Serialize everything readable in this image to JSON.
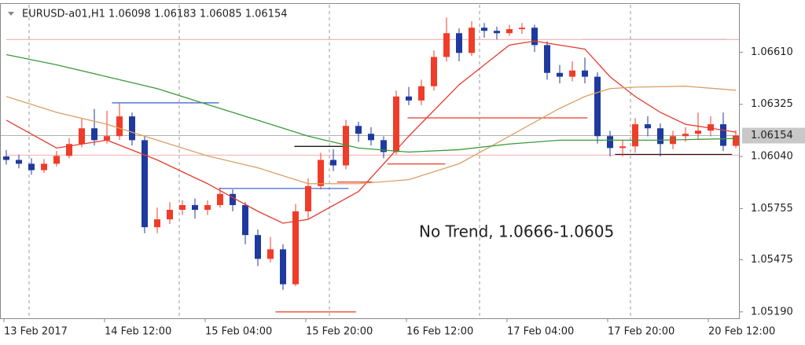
{
  "chart_data": {
    "type": "candlestick",
    "title": "EURUSD-a01,H1 1.06098 1.06183 1.06085 1.06154",
    "annotation": "No Trend, 1.0666-1.0605",
    "up_color": "#f03c28",
    "down_color": "#1f3a9e",
    "categories": [
      "13 Feb 2017",
      null,
      null,
      null,
      null,
      null,
      null,
      null,
      "14 Feb 12:00",
      null,
      null,
      null,
      null,
      null,
      null,
      null,
      "15 Feb 04:00",
      null,
      null,
      null,
      null,
      null,
      null,
      null,
      "15 Feb 20:00",
      null,
      null,
      null,
      null,
      null,
      null,
      null,
      "16 Feb 12:00",
      null,
      null,
      null,
      null,
      null,
      null,
      null,
      "17 Feb 04:00",
      null,
      null,
      null,
      null,
      null,
      null,
      null,
      "17 Feb 20:00",
      null,
      null,
      null,
      null,
      null,
      null,
      null,
      "20 Feb 12:00",
      null,
      null
    ],
    "open": [
      1.0604,
      1.06021,
      1.06,
      1.05965,
      1.06,
      1.06043,
      1.06108,
      1.06194,
      1.06129,
      1.06151,
      1.06259,
      1.06129,
      1.05653,
      1.05696,
      1.05748,
      1.05774,
      1.05748,
      1.05774,
      1.05835,
      1.05774,
      1.0561,
      1.0548,
      1.05532,
      1.05341,
      1.0574,
      1.05878,
      1.06021,
      1.05991,
      1.06207,
      1.06164,
      1.06129,
      1.06064,
      1.06368,
      1.06346,
      1.06424,
      1.06584,
      1.06714,
      1.06606,
      1.06744,
      1.06727,
      1.06714,
      1.06736,
      1.06744,
      1.06649,
      1.06497,
      1.06476,
      1.0651,
      1.06476,
      1.06151,
      1.06086,
      1.06095,
      1.06216,
      1.06194,
      1.06108,
      1.06151,
      1.06164,
      1.06181,
      1.06216,
      1.06098
    ],
    "high": [
      1.06075,
      1.0605,
      1.0603,
      1.06025,
      1.0607,
      1.0614,
      1.0625,
      1.063,
      1.0629,
      1.0633,
      1.0628,
      1.0615,
      1.0576,
      1.0579,
      1.058,
      1.0581,
      1.058,
      1.0587,
      1.0586,
      1.0579,
      1.0564,
      1.056,
      1.0556,
      1.0578,
      1.0592,
      1.0606,
      1.0608,
      1.0624,
      1.0623,
      1.062,
      1.0615,
      1.064,
      1.0642,
      1.0646,
      1.0662,
      1.068,
      1.0674,
      1.0678,
      1.0677,
      1.0675,
      1.0676,
      1.0677,
      1.0676,
      1.0667,
      1.0654,
      1.0656,
      1.0658,
      1.065,
      1.0618,
      1.0613,
      1.0625,
      1.0626,
      1.0622,
      1.0618,
      1.062,
      1.0628,
      1.0626,
      1.0628,
      1.06183
    ],
    "low": [
      1.05995,
      1.05975,
      1.0594,
      1.0595,
      1.05985,
      1.0603,
      1.0609,
      1.061,
      1.0611,
      1.0613,
      1.061,
      1.0562,
      1.0562,
      1.0567,
      1.0572,
      1.057,
      1.0572,
      1.0576,
      1.0574,
      1.0556,
      1.0544,
      1.0546,
      1.0531,
      1.0533,
      1.057,
      1.0586,
      1.0596,
      1.0597,
      1.0612,
      1.061,
      1.0603,
      1.0605,
      1.0632,
      1.0632,
      1.064,
      1.0656,
      1.0656,
      1.0659,
      1.0669,
      1.0668,
      1.067,
      1.0671,
      1.0661,
      1.0646,
      1.0644,
      1.0645,
      1.0644,
      1.0611,
      1.0604,
      1.0604,
      1.0606,
      1.0615,
      1.0604,
      1.0608,
      1.0612,
      1.0613,
      1.0615,
      1.0607,
      1.06085
    ],
    "close": [
      1.06021,
      1.06,
      1.05965,
      1.06,
      1.06043,
      1.06108,
      1.06194,
      1.06129,
      1.06151,
      1.06259,
      1.06129,
      1.05653,
      1.05696,
      1.05748,
      1.05774,
      1.05748,
      1.05774,
      1.05835,
      1.05774,
      1.0561,
      1.0548,
      1.05532,
      1.05341,
      1.0574,
      1.05878,
      1.06021,
      1.05991,
      1.06207,
      1.06164,
      1.06129,
      1.06064,
      1.06368,
      1.06346,
      1.06424,
      1.06584,
      1.06714,
      1.06606,
      1.06744,
      1.06727,
      1.06714,
      1.06736,
      1.06744,
      1.06649,
      1.06497,
      1.06476,
      1.0651,
      1.06476,
      1.06151,
      1.06086,
      1.06095,
      1.06216,
      1.06194,
      1.06108,
      1.06151,
      1.06164,
      1.06181,
      1.06216,
      1.06098,
      1.06154
    ],
    "overlays": [
      {
        "color": "#e53b2e",
        "x": [
          0,
          4,
          8,
          12,
          16,
          20,
          22,
          24,
          28,
          32,
          36,
          40,
          42,
          44,
          46,
          48,
          50,
          52,
          54,
          58
        ],
        "values": [
          1.06238,
          1.06086,
          1.06129,
          1.06021,
          1.05891,
          1.0574,
          1.05675,
          1.05696,
          1.05848,
          1.06151,
          1.06432,
          1.06649,
          1.06671,
          1.06649,
          1.06627,
          1.06476,
          1.06368,
          1.06281,
          1.06216,
          1.06173
        ]
      },
      {
        "color": "#d9a066",
        "x": [
          0,
          4,
          8,
          12,
          16,
          20,
          24,
          28,
          32,
          36,
          40,
          44,
          46,
          48,
          50,
          54,
          58
        ],
        "values": [
          1.06368,
          1.06281,
          1.06216,
          1.06129,
          1.06043,
          1.05978,
          1.05891,
          1.05891,
          1.05913,
          1.06,
          1.06151,
          1.06303,
          1.06368,
          1.06411,
          1.06419,
          1.06424,
          1.06402
        ]
      },
      {
        "color": "#3a9a3a",
        "x": [
          0,
          4,
          8,
          12,
          16,
          20,
          24,
          28,
          32,
          36,
          40,
          44,
          48,
          52,
          58
        ],
        "values": [
          1.06597,
          1.06541,
          1.06476,
          1.06411,
          1.06324,
          1.06238,
          1.06151,
          1.06086,
          1.06064,
          1.06077,
          1.06108,
          1.06129,
          1.06129,
          1.06129,
          1.06138
        ]
      }
    ],
    "levels": [
      {
        "color": "#2f5fd0",
        "value": 1.06333,
        "start": 8.4,
        "end": 16.9
      },
      {
        "color": "#2f5fd0",
        "value": 1.05865,
        "start": 16.9,
        "end": 27.2
      },
      {
        "color": "#2f5fd0",
        "value": 1.06679,
        "start": 45.8,
        "end": 57.2
      },
      {
        "color": "#000000",
        "value": 1.06095,
        "start": 22.9,
        "end": 27.2
      },
      {
        "color": "#000000",
        "value": 1.06051,
        "start": 48.4,
        "end": 57.7
      },
      {
        "color": "#e53b2e",
        "value": 1.0519,
        "start": 21.4,
        "end": 27.8
      },
      {
        "color": "#e53b2e",
        "value": 1.06251,
        "start": 31.9,
        "end": 46.2
      },
      {
        "color": "#e53b2e",
        "value": 1.05999,
        "start": 30.3,
        "end": 34.9
      },
      {
        "color": "#e53b2e",
        "value": 1.059,
        "start": 26.3,
        "end": 29.1
      },
      {
        "color": "#f4b8b8",
        "value": 1.06679,
        "start": 0,
        "end": 58.5
      },
      {
        "color": "#f4b8b8",
        "value": 1.06047,
        "start": 0,
        "end": 58.5
      }
    ],
    "last_price": {
      "value": 1.06154,
      "label": "1.06154"
    },
    "ylim": [
      1.05155,
      1.06874
    ],
    "yticks": [
      {
        "value": 1.0661,
        "label": "1.06610"
      },
      1.06325,
      {
        "value": 1.0604,
        "label": "1.06040"
      },
      1.05755,
      1.05475,
      {
        "value": 1.0519,
        "label": "1.05190"
      }
    ]
  }
}
